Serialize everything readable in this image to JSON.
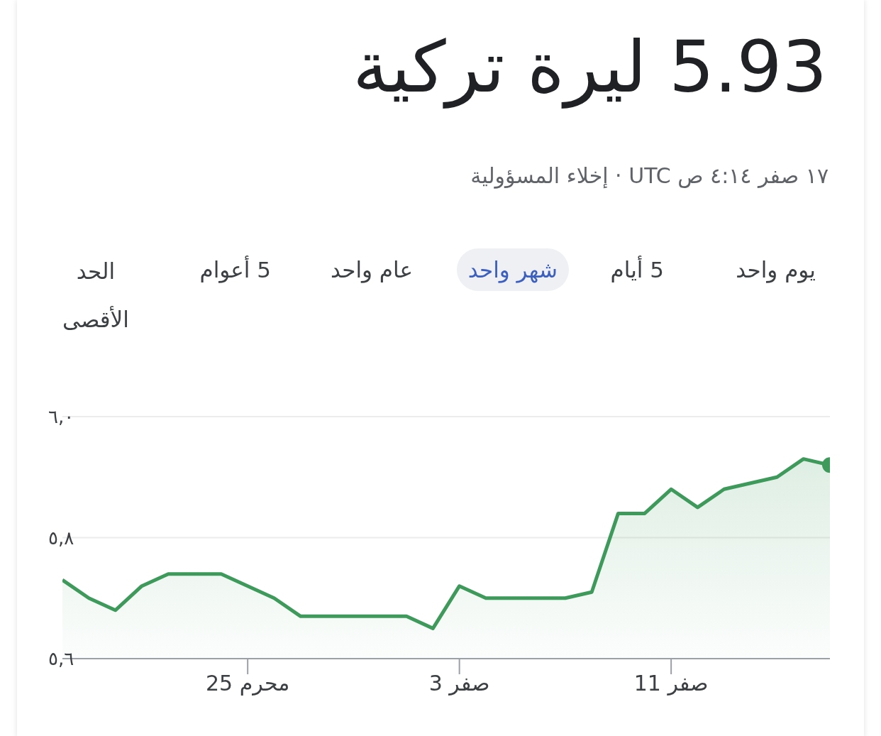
{
  "chart_data": {
    "type": "area",
    "title": "5.93 ليرة تركية",
    "subtitle": "١٧ صفر ٤:١٤ ص UTC · إخلاء المسؤولية",
    "annotations": [
      "يوم واحد",
      "5 أيام",
      "شهر واحد",
      "عام واحد",
      "5 أعوام",
      "الحد الأقصى"
    ],
    "categories": [
      null,
      null,
      null,
      null,
      null,
      null,
      null,
      "25 محرم",
      null,
      null,
      null,
      null,
      null,
      null,
      null,
      "3 صفر",
      null,
      null,
      null,
      null,
      null,
      null,
      null,
      "11 صفر",
      null,
      null,
      null,
      null,
      null,
      null
    ],
    "series": [
      {
        "color": "#3d9a5a",
        "values": [
          5.73,
          5.7,
          5.68,
          5.72,
          5.74,
          5.74,
          5.74,
          5.72,
          5.7,
          5.67,
          5.67,
          5.67,
          5.67,
          5.67,
          5.65,
          5.72,
          5.7,
          5.7,
          5.7,
          5.7,
          5.71,
          5.84,
          5.84,
          5.88,
          5.85,
          5.88,
          5.89,
          5.9,
          5.93,
          5.92
        ]
      }
    ],
    "ylim": [
      5.6,
      6.0
    ],
    "yticks": [
      {
        "value": 5.6,
        "label": "٥,٦"
      },
      {
        "value": 5.8,
        "label": "٥,٨"
      },
      {
        "value": 6.0,
        "label": "٦,٠"
      }
    ],
    "grid": "y"
  }
}
